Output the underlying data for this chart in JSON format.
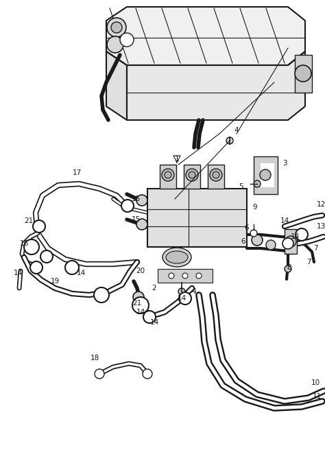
{
  "bg_color": "#ffffff",
  "line_color": "#1a1a1a",
  "fig_width": 4.74,
  "fig_height": 6.56,
  "dpi": 100
}
